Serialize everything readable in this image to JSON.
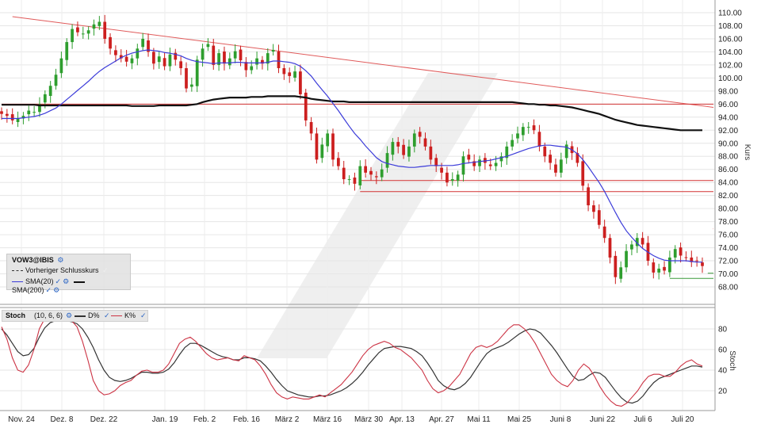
{
  "chart_data": [
    {
      "type": "candlestick",
      "title": "",
      "symbol": "VOW3@IBIS",
      "ylabel": "Kurs",
      "ylim": [
        66.0,
        111.0
      ],
      "yticks": [
        "110.00",
        "108.00",
        "106.00",
        "104.00",
        "102.00",
        "100.00",
        "98.00",
        "96.00",
        "94.00",
        "92.00",
        "90.00",
        "88.00",
        "86.00",
        "84.00",
        "82.00",
        "80.00",
        "78.00",
        "76.00",
        "74.00",
        "72.00",
        "70.00",
        "68.00"
      ],
      "x_labels": [
        "Nov. 24",
        "Dez. 8",
        "Dez. 22",
        "Jan. 19",
        "Feb. 2",
        "Feb. 16",
        "März 2",
        "März 16",
        "März 30",
        "Apr. 13",
        "Apr. 27",
        "Mai 11",
        "Mai 25",
        "Juni 8",
        "Juni 22",
        "Juli 6",
        "Juli 20"
      ],
      "legend": {
        "title": "VOW3@IBIS",
        "prev_close": "Vorheriger Schlusskurs",
        "sma20": "SMA(20)",
        "sma200": "SMA(200)"
      },
      "closes": [
        94.5,
        94.2,
        93.5,
        93.8,
        94.2,
        95.0,
        94.8,
        96.0,
        97.5,
        98.8,
        100.5,
        103.0,
        105.5,
        107.5,
        107.0,
        106.8,
        107.3,
        108.2,
        108.6,
        106.0,
        104.5,
        103.5,
        103.0,
        102.5,
        103.0,
        104.5,
        106.0,
        104.0,
        102.2,
        103.3,
        101.8,
        103.6,
        102.8,
        101.5,
        98.4,
        99.0,
        102.8,
        104.5,
        105.2,
        102.0,
        103.8,
        102.2,
        103.0,
        104.1,
        102.7,
        101.2,
        101.8,
        103.0,
        102.2,
        103.8,
        104.3,
        101.5,
        100.6,
        100.3,
        101.0,
        97.5,
        93.5,
        91.5,
        87.5,
        89.8,
        91.5,
        87.5,
        86.5,
        84.5,
        84.5,
        83.8,
        86.5,
        85.5,
        85.2,
        84.8,
        86.0,
        88.5,
        90.2,
        89.5,
        88.2,
        89.5,
        91.5,
        91.0,
        89.5,
        87.5,
        86.5,
        85.5,
        84.0,
        84.5,
        85.2,
        88.0,
        87.5,
        86.5,
        87.5,
        87.0,
        86.5,
        87.0,
        88.0,
        89.5,
        90.5,
        91.5,
        92.5,
        92.5,
        92.0,
        89.5,
        88.0,
        87.0,
        85.5,
        87.5,
        89.8,
        88.5,
        87.0,
        83.5,
        80.5,
        79.5,
        77.5,
        75.5,
        72.5,
        69.5,
        71.0,
        73.5,
        74.5,
        75.5,
        74.5,
        72.0,
        70.2,
        70.8,
        70.5,
        72.5,
        73.8,
        72.8,
        72.5,
        71.8,
        72.0,
        71.2
      ],
      "sma20": [
        93.8,
        93.8,
        93.8,
        93.8,
        93.9,
        94.0,
        94.1,
        94.3,
        94.6,
        95.0,
        95.4,
        96.0,
        96.7,
        97.4,
        98.1,
        98.8,
        99.5,
        100.3,
        101.0,
        101.6,
        102.1,
        102.6,
        103.1,
        103.5,
        103.8,
        104.0,
        104.2,
        104.3,
        104.2,
        104.1,
        103.9,
        103.8,
        103.6,
        103.4,
        103.0,
        102.7,
        102.5,
        102.4,
        102.3,
        102.2,
        102.3,
        102.3,
        102.3,
        102.4,
        102.4,
        102.3,
        102.3,
        102.3,
        102.3,
        102.4,
        102.6,
        102.6,
        102.5,
        102.4,
        102.2,
        101.8,
        101.1,
        100.3,
        99.2,
        98.2,
        97.2,
        96.1,
        95.0,
        93.8,
        92.6,
        91.5,
        90.6,
        89.6,
        88.7,
        87.8,
        87.2,
        86.9,
        86.7,
        86.5,
        86.4,
        86.3,
        86.3,
        86.4,
        86.5,
        86.6,
        86.6,
        86.6,
        86.6,
        86.6,
        86.7,
        86.9,
        87.0,
        87.1,
        87.2,
        87.3,
        87.4,
        87.6,
        87.8,
        88.0,
        88.3,
        88.6,
        88.9,
        89.2,
        89.4,
        89.6,
        89.7,
        89.7,
        89.6,
        89.5,
        89.4,
        89.0,
        88.4,
        87.5,
        86.4,
        85.2,
        84.0,
        82.6,
        81.0,
        79.4,
        77.9,
        76.6,
        75.6,
        74.7,
        73.9,
        73.3,
        72.8,
        72.4,
        72.1,
        72.0,
        72.0,
        72.0,
        72.0,
        71.9,
        71.8,
        71.8
      ],
      "sma200": [
        95.9,
        95.9,
        95.9,
        95.9,
        95.9,
        95.9,
        95.9,
        95.8,
        95.8,
        95.8,
        95.8,
        95.8,
        95.8,
        95.8,
        95.8,
        95.8,
        95.8,
        95.8,
        95.8,
        95.8,
        95.8,
        95.8,
        95.8,
        95.8,
        95.7,
        95.7,
        95.7,
        95.7,
        95.7,
        95.8,
        95.8,
        95.8,
        95.8,
        95.8,
        95.8,
        95.9,
        96.0,
        96.3,
        96.5,
        96.7,
        96.8,
        96.9,
        97.0,
        97.0,
        97.0,
        97.0,
        97.1,
        97.1,
        97.1,
        97.2,
        97.2,
        97.2,
        97.2,
        97.2,
        97.2,
        97.1,
        97.0,
        96.8,
        96.7,
        96.6,
        96.5,
        96.4,
        96.4,
        96.4,
        96.3,
        96.3,
        96.3,
        96.3,
        96.3,
        96.3,
        96.3,
        96.3,
        96.3,
        96.3,
        96.3,
        96.3,
        96.3,
        96.3,
        96.3,
        96.3,
        96.3,
        96.3,
        96.3,
        96.3,
        96.3,
        96.3,
        96.3,
        96.3,
        96.3,
        96.3,
        96.3,
        96.3,
        96.3,
        96.3,
        96.3,
        96.2,
        96.1,
        96.0,
        96.0,
        95.9,
        95.9,
        95.8,
        95.8,
        95.7,
        95.6,
        95.5,
        95.3,
        95.1,
        94.9,
        94.7,
        94.5,
        94.2,
        93.9,
        93.6,
        93.4,
        93.2,
        93.0,
        92.8,
        92.7,
        92.6,
        92.5,
        92.4,
        92.3,
        92.2,
        92.1,
        92.0,
        92.0,
        92.0,
        92.0,
        92.0
      ],
      "support_resistance": [
        {
          "name": "Trendlinie",
          "from": [
            2,
            109.4
          ],
          "to": [
            145,
            95.5
          ],
          "color": "#e05a5a"
        },
        {
          "name": "Linie 96",
          "from": [
            0,
            96.0
          ],
          "to": [
            145,
            96.0
          ],
          "color": "#d23232"
        },
        {
          "name": "Linie 84.3",
          "from": [
            66,
            84.3
          ],
          "to": [
            145,
            84.3
          ],
          "color": "#d23232"
        },
        {
          "name": "Linie 82.6",
          "from": [
            66,
            82.6
          ],
          "to": [
            145,
            82.6
          ],
          "color": "#d23232"
        },
        {
          "name": "Linie 76.9",
          "from": [
            131,
            76.9
          ],
          "to": [
            145,
            76.9
          ],
          "color": "#d23232"
        },
        {
          "name": "Linie 70.1",
          "from": [
            130,
            70.1
          ],
          "to": [
            145,
            70.1
          ],
          "color": "#3a9a3a"
        },
        {
          "name": "Linie 69.3",
          "from": [
            123,
            69.3
          ],
          "to": [
            145,
            69.3
          ],
          "color": "#3a9a3a"
        }
      ],
      "colors": {
        "up": "#2e9e2e",
        "down": "#cc1f1f",
        "sma20": "#3b3bd9",
        "sma200": "#111111"
      }
    },
    {
      "type": "line",
      "title": "",
      "indicator": "Stoch",
      "params": "(10, 6, 6)",
      "ylabel": "Stoch",
      "ylim": [
        0,
        100
      ],
      "yticks": [
        "80",
        "60",
        "40",
        "20"
      ],
      "series": [
        {
          "name": "D%",
          "color": "#333333",
          "values": [
            80,
            74,
            66,
            58,
            54,
            55,
            61,
            72,
            81,
            86,
            88,
            89,
            88,
            87,
            85,
            80,
            72,
            62,
            50,
            40,
            33,
            30,
            29,
            30,
            32,
            35,
            38,
            38,
            37,
            37,
            38,
            41,
            47,
            55,
            62,
            66,
            66,
            64,
            61,
            58,
            55,
            53,
            52,
            50,
            50,
            52,
            52,
            51,
            49,
            44,
            38,
            31,
            25,
            20,
            18,
            16,
            15,
            14,
            14,
            15,
            15,
            16,
            18,
            20,
            23,
            27,
            32,
            38,
            45,
            51,
            57,
            61,
            62,
            63,
            63,
            62,
            61,
            58,
            54,
            47,
            39,
            30,
            25,
            22,
            21,
            23,
            27,
            33,
            41,
            49,
            56,
            60,
            62,
            64,
            67,
            71,
            75,
            78,
            80,
            79,
            76,
            70,
            64,
            57,
            49,
            41,
            34,
            30,
            31,
            35,
            38,
            37,
            33,
            26,
            19,
            13,
            9,
            8,
            10,
            15,
            22,
            28,
            32,
            34,
            36,
            38,
            40,
            42,
            44,
            44,
            43
          ]
        },
        {
          "name": "K%",
          "color": "#cc3344",
          "values": [
            82,
            70,
            52,
            40,
            38,
            45,
            60,
            80,
            90,
            92,
            90,
            92,
            90,
            88,
            82,
            68,
            50,
            30,
            20,
            16,
            17,
            20,
            25,
            28,
            30,
            35,
            39,
            40,
            38,
            38,
            40,
            46,
            56,
            66,
            70,
            72,
            68,
            62,
            56,
            52,
            50,
            51,
            52,
            50,
            49,
            54,
            52,
            50,
            44,
            36,
            26,
            18,
            14,
            12,
            14,
            13,
            12,
            12,
            14,
            16,
            14,
            18,
            22,
            26,
            32,
            38,
            46,
            54,
            60,
            64,
            66,
            68,
            66,
            62,
            60,
            56,
            52,
            46,
            40,
            30,
            22,
            18,
            20,
            24,
            30,
            36,
            46,
            56,
            62,
            64,
            62,
            64,
            68,
            74,
            80,
            84,
            84,
            80,
            74,
            66,
            56,
            46,
            36,
            30,
            26,
            24,
            30,
            40,
            46,
            42,
            34,
            24,
            16,
            10,
            6,
            5,
            8,
            14,
            20,
            28,
            34,
            36,
            36,
            34,
            34,
            38,
            44,
            48,
            50,
            46,
            44
          ]
        }
      ],
      "colors": {
        "D": "#333333",
        "K": "#cc3344"
      }
    }
  ]
}
